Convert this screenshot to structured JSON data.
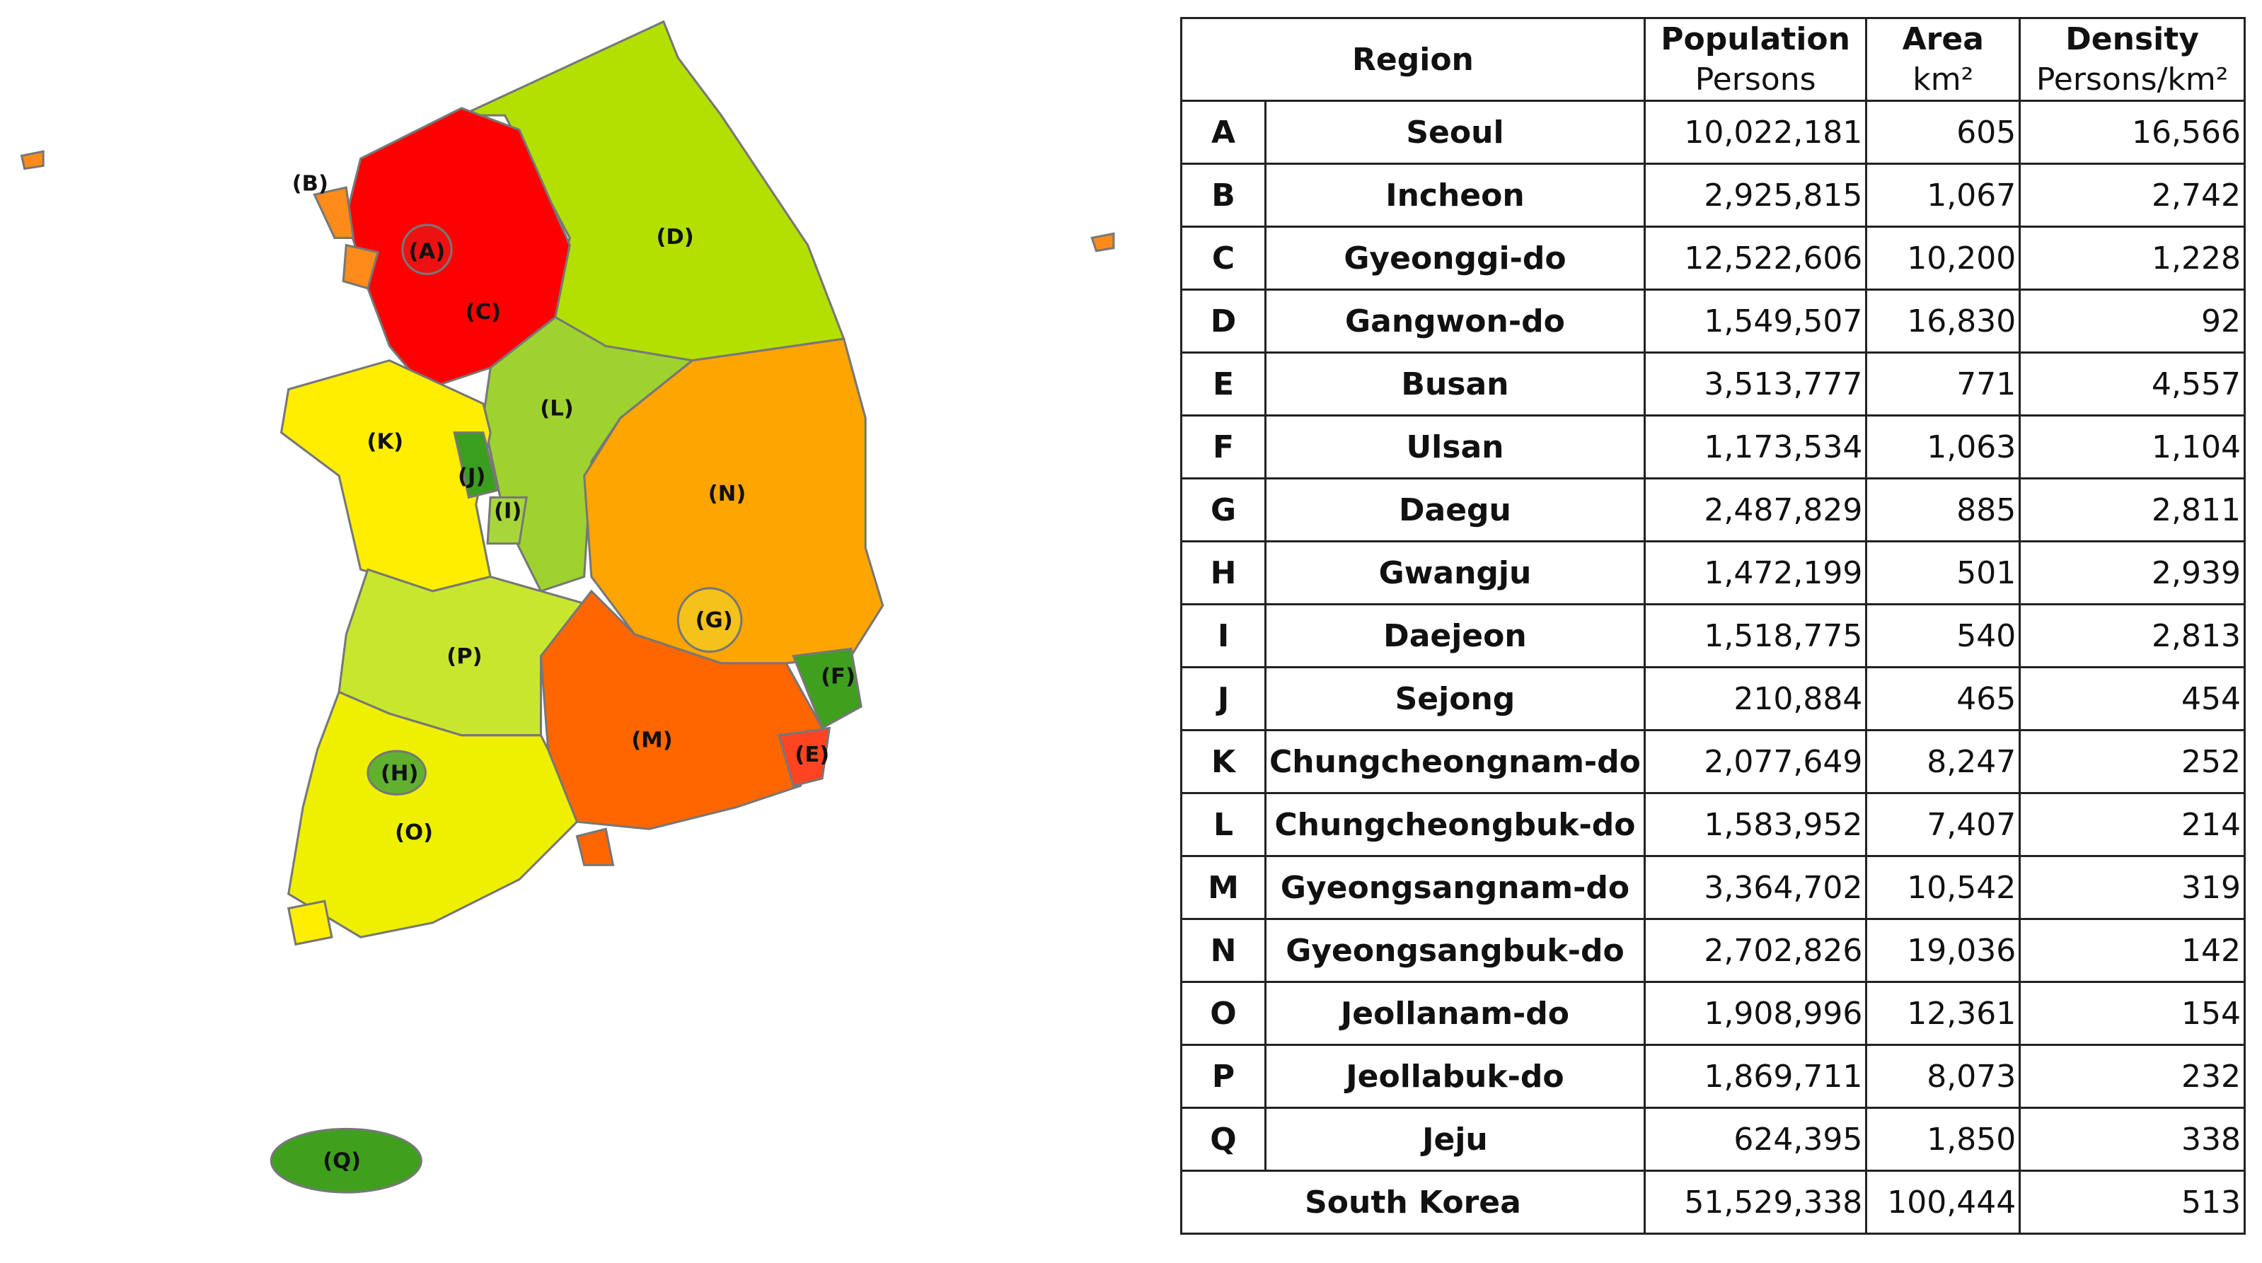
{
  "map": {
    "labels": [
      "(A)",
      "(B)",
      "(C)",
      "(D)",
      "(E)",
      "(F)",
      "(G)",
      "(H)",
      "(I)",
      "(J)",
      "(K)",
      "(L)",
      "(M)",
      "(N)",
      "(O)",
      "(P)",
      "(Q)"
    ]
  },
  "table": {
    "header": {
      "region": "Region",
      "population": "Population",
      "area": "Area",
      "density": "Density",
      "population_unit": "Persons",
      "area_unit": "km²",
      "density_unit": "Persons/km²"
    },
    "rows": [
      [
        "A",
        "Seoul",
        "10,022,181",
        "605",
        "16,566"
      ],
      [
        "B",
        "Incheon",
        "2,925,815",
        "1,067",
        "2,742"
      ],
      [
        "C",
        "Gyeonggi-do",
        "12,522,606",
        "10,200",
        "1,228"
      ],
      [
        "D",
        "Gangwon-do",
        "1,549,507",
        "16,830",
        "92"
      ],
      [
        "E",
        "Busan",
        "3,513,777",
        "771",
        "4,557"
      ],
      [
        "F",
        "Ulsan",
        "1,173,534",
        "1,063",
        "1,104"
      ],
      [
        "G",
        "Daegu",
        "2,487,829",
        "885",
        "2,811"
      ],
      [
        "H",
        "Gwangju",
        "1,472,199",
        "501",
        "2,939"
      ],
      [
        "I",
        "Daejeon",
        "1,518,775",
        "540",
        "2,813"
      ],
      [
        "J",
        "Sejong",
        "210,884",
        "465",
        "454"
      ],
      [
        "K",
        "Chungcheongnam-do",
        "2,077,649",
        "8,247",
        "252"
      ],
      [
        "L",
        "Chungcheongbuk-do",
        "1,583,952",
        "7,407",
        "214"
      ],
      [
        "M",
        "Gyeongsangnam-do",
        "3,364,702",
        "10,542",
        "319"
      ],
      [
        "N",
        "Gyeongsangbuk-do",
        "2,702,826",
        "19,036",
        "142"
      ],
      [
        "O",
        "Jeollanam-do",
        "1,908,996",
        "12,361",
        "154"
      ],
      [
        "P",
        "Jeollabuk-do",
        "1,869,711",
        "8,073",
        "232"
      ],
      [
        "Q",
        "Jeju",
        "624,395",
        "1,850",
        "338"
      ]
    ],
    "total": [
      "South Korea",
      "51,529,338",
      "100,444",
      "513"
    ]
  }
}
